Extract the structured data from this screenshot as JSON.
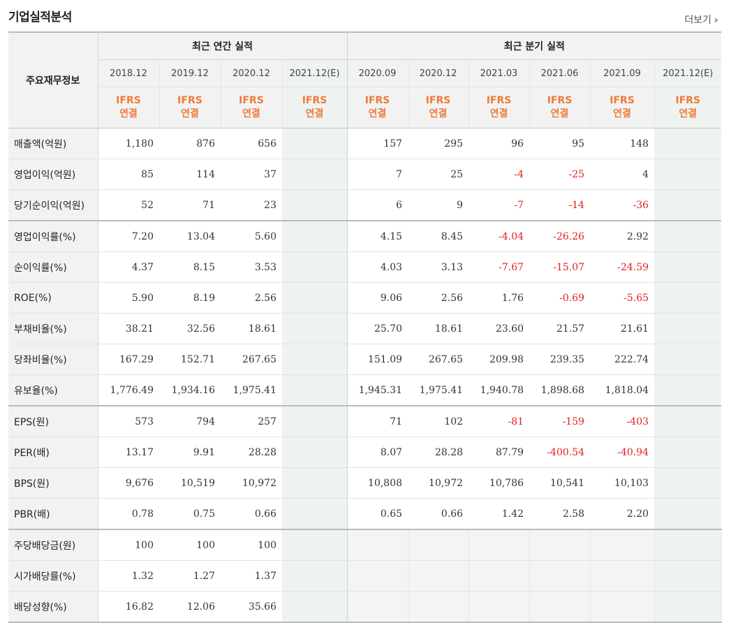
{
  "title": "기업실적분석",
  "more_label": "더보기",
  "header": {
    "row_label": "주요재무정보",
    "annual_title": "최근 연간 실적",
    "quarter_title": "최근 분기 실적",
    "annual_periods": [
      "2018.12",
      "2019.12",
      "2020.12",
      "2021.12(E)"
    ],
    "quarter_periods": [
      "2020.09",
      "2020.12",
      "2021.03",
      "2021.06",
      "2021.09",
      "2021.12(E)"
    ],
    "ifrs_line1": "IFRS",
    "ifrs_line2": "연결"
  },
  "rows": [
    {
      "label": "매출액(억원)",
      "annual": [
        "1,180",
        "876",
        "656",
        ""
      ],
      "quarter": [
        "157",
        "295",
        "96",
        "95",
        "148",
        ""
      ]
    },
    {
      "label": "영업이익(억원)",
      "annual": [
        "85",
        "114",
        "37",
        ""
      ],
      "quarter": [
        "7",
        "25",
        "-4",
        "-25",
        "4",
        ""
      ]
    },
    {
      "label": "당기순이익(억원)",
      "annual": [
        "52",
        "71",
        "23",
        ""
      ],
      "quarter": [
        "6",
        "9",
        "-7",
        "-14",
        "-36",
        ""
      ]
    },
    {
      "label": "영업이익률(%)",
      "annual": [
        "7.20",
        "13.04",
        "5.60",
        ""
      ],
      "quarter": [
        "4.15",
        "8.45",
        "-4.04",
        "-26.26",
        "2.92",
        ""
      ]
    },
    {
      "label": "순이익률(%)",
      "annual": [
        "4.37",
        "8.15",
        "3.53",
        ""
      ],
      "quarter": [
        "4.03",
        "3.13",
        "-7.67",
        "-15.07",
        "-24.59",
        ""
      ]
    },
    {
      "label": "ROE(%)",
      "annual": [
        "5.90",
        "8.19",
        "2.56",
        ""
      ],
      "quarter": [
        "9.06",
        "2.56",
        "1.76",
        "-0.69",
        "-5.65",
        ""
      ]
    },
    {
      "label": "부채비율(%)",
      "annual": [
        "38.21",
        "32.56",
        "18.61",
        ""
      ],
      "quarter": [
        "25.70",
        "18.61",
        "23.60",
        "21.57",
        "21.61",
        ""
      ]
    },
    {
      "label": "당좌비율(%)",
      "annual": [
        "167.29",
        "152.71",
        "267.65",
        ""
      ],
      "quarter": [
        "151.09",
        "267.65",
        "209.98",
        "239.35",
        "222.74",
        ""
      ]
    },
    {
      "label": "유보율(%)",
      "annual": [
        "1,776.49",
        "1,934.16",
        "1,975.41",
        ""
      ],
      "quarter": [
        "1,945.31",
        "1,975.41",
        "1,940.78",
        "1,898.68",
        "1,818.04",
        ""
      ]
    },
    {
      "label": "EPS(원)",
      "annual": [
        "573",
        "794",
        "257",
        ""
      ],
      "quarter": [
        "71",
        "102",
        "-81",
        "-159",
        "-403",
        ""
      ]
    },
    {
      "label": "PER(배)",
      "annual": [
        "13.17",
        "9.91",
        "28.28",
        ""
      ],
      "quarter": [
        "8.07",
        "28.28",
        "87.79",
        "-400.54",
        "-40.94",
        ""
      ]
    },
    {
      "label": "BPS(원)",
      "annual": [
        "9,676",
        "10,519",
        "10,972",
        ""
      ],
      "quarter": [
        "10,808",
        "10,972",
        "10,786",
        "10,541",
        "10,103",
        ""
      ]
    },
    {
      "label": "PBR(배)",
      "annual": [
        "0.78",
        "0.75",
        "0.66",
        ""
      ],
      "quarter": [
        "0.65",
        "0.66",
        "1.42",
        "2.58",
        "2.20",
        ""
      ]
    },
    {
      "label": "주당배당금(원)",
      "annual": [
        "100",
        "100",
        "100",
        ""
      ],
      "quarter": [
        "",
        "",
        "",
        "",
        "",
        ""
      ]
    },
    {
      "label": "시가배당률(%)",
      "annual": [
        "1.32",
        "1.27",
        "1.37",
        ""
      ],
      "quarter": [
        "",
        "",
        "",
        "",
        "",
        ""
      ]
    },
    {
      "label": "배당성향(%)",
      "annual": [
        "16.82",
        "12.06",
        "35.66",
        ""
      ],
      "quarter": [
        "",
        "",
        "",
        "",
        "",
        ""
      ]
    }
  ],
  "colors": {
    "negative": "#e02020",
    "ifrs": "#ef7a3a",
    "estimate_bg": "#eef3ef"
  }
}
